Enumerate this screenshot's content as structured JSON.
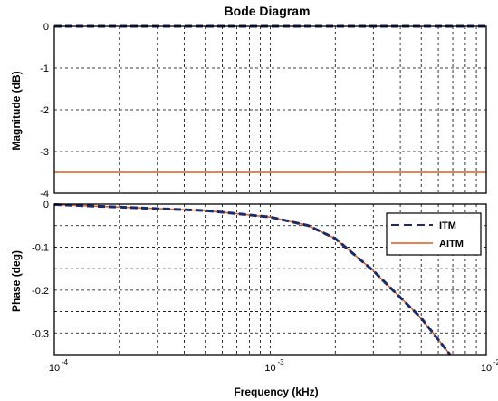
{
  "chart_data": [
    {
      "panel": "magnitude",
      "type": "line",
      "title": "Bode Diagram",
      "xlabel": "Frequency  (kHz)",
      "ylabel": "Magnitude (dB)",
      "xscale": "log",
      "xlim": [
        0.0001,
        0.01
      ],
      "ylim": [
        -4,
        0
      ],
      "yticks": [
        0,
        -1,
        -2,
        -3,
        -4
      ],
      "grid": true,
      "series": [
        {
          "name": "ITM",
          "color": "#1a2a6b",
          "style": "dashed",
          "x": [
            0.0001,
            0.01
          ],
          "y": [
            0,
            0
          ]
        },
        {
          "name": "AITM",
          "color": "#e05a1a",
          "style": "solid",
          "x": [
            0.0001,
            0.01
          ],
          "y": [
            -3.5,
            -3.5
          ]
        }
      ]
    },
    {
      "panel": "phase",
      "type": "line",
      "xlabel": "Frequency  (kHz)",
      "ylabel": "Phase (deg)",
      "xscale": "log",
      "xlim": [
        0.0001,
        0.01
      ],
      "ylim": [
        -0.35,
        0
      ],
      "yticks": [
        0,
        -0.1,
        -0.2,
        -0.3
      ],
      "xticks": [
        {
          "base": "10",
          "exp": "-4"
        },
        {
          "base": "10",
          "exp": "-3"
        },
        {
          "base": "10",
          "exp": "-2"
        }
      ],
      "grid": true,
      "legend": "top-right",
      "series": [
        {
          "name": "ITM",
          "color": "#1a2a6b",
          "style": "dashed",
          "x": [
            0.0001,
            0.0002,
            0.0005,
            0.001,
            0.0015,
            0.002,
            0.003,
            0.005,
            0.0068
          ],
          "y": [
            -0.001,
            -0.007,
            -0.015,
            -0.03,
            -0.05,
            -0.08,
            -0.155,
            -0.265,
            -0.35
          ]
        },
        {
          "name": "AITM",
          "color": "#e05a1a",
          "style": "solid",
          "x": [
            0.0001,
            0.0002,
            0.0005,
            0.001,
            0.0015,
            0.002,
            0.003,
            0.005,
            0.0068
          ],
          "y": [
            -0.001,
            -0.007,
            -0.015,
            -0.03,
            -0.05,
            -0.08,
            -0.155,
            -0.265,
            -0.35
          ]
        }
      ]
    }
  ]
}
